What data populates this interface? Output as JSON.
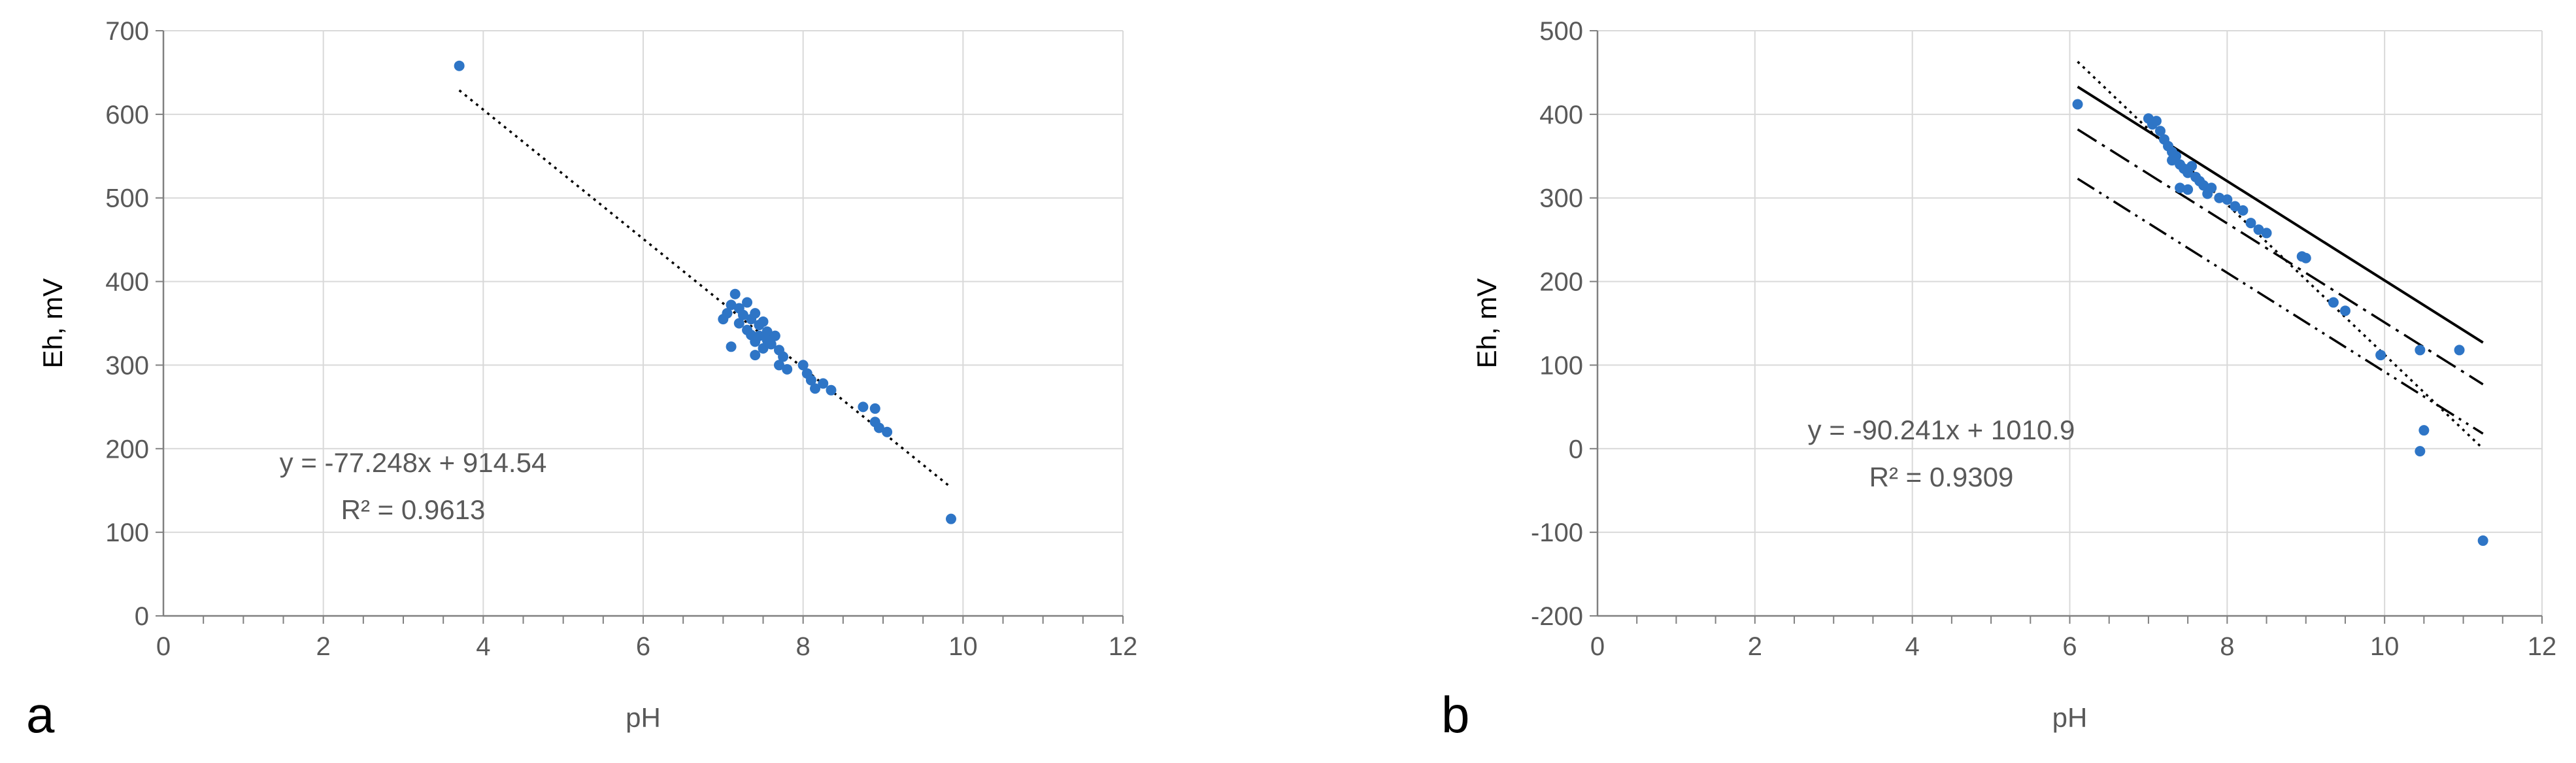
{
  "figure": {
    "panels": [
      "a",
      "b"
    ]
  },
  "colors": {
    "points": "#2E75C6",
    "grid": "#D9D9D9",
    "axis": "#808080",
    "text": "#595959",
    "label": "#000000",
    "line": "#000000"
  },
  "chart_data": [
    {
      "type": "scatter",
      "panel_label": "a",
      "xlabel": "pH",
      "ylabel": "Eh, mV",
      "xlim": [
        0,
        12
      ],
      "ylim": [
        0,
        700
      ],
      "xticks": [
        0,
        2,
        4,
        6,
        8,
        10,
        12
      ],
      "yticks": [
        0,
        100,
        200,
        300,
        400,
        500,
        600,
        700
      ],
      "grid": true,
      "points": [
        [
          3.7,
          658
        ],
        [
          7.0,
          355
        ],
        [
          7.05,
          362
        ],
        [
          7.1,
          372
        ],
        [
          7.15,
          385
        ],
        [
          7.1,
          322
        ],
        [
          7.2,
          368
        ],
        [
          7.2,
          350
        ],
        [
          7.25,
          360
        ],
        [
          7.3,
          342
        ],
        [
          7.3,
          375
        ],
        [
          7.35,
          355
        ],
        [
          7.35,
          336
        ],
        [
          7.4,
          362
        ],
        [
          7.4,
          328
        ],
        [
          7.4,
          312
        ],
        [
          7.45,
          348
        ],
        [
          7.45,
          335
        ],
        [
          7.5,
          352
        ],
        [
          7.5,
          320
        ],
        [
          7.55,
          340
        ],
        [
          7.55,
          330
        ],
        [
          7.6,
          325
        ],
        [
          7.65,
          335
        ],
        [
          7.7,
          318
        ],
        [
          7.7,
          300
        ],
        [
          7.75,
          310
        ],
        [
          7.8,
          295
        ],
        [
          8.0,
          300
        ],
        [
          8.05,
          290
        ],
        [
          8.1,
          282
        ],
        [
          8.15,
          272
        ],
        [
          8.25,
          278
        ],
        [
          8.35,
          270
        ],
        [
          8.75,
          250
        ],
        [
          8.9,
          248
        ],
        [
          8.9,
          232
        ],
        [
          8.95,
          225
        ],
        [
          9.05,
          220
        ],
        [
          9.85,
          116
        ]
      ],
      "trendlines": [
        {
          "style": "dotted",
          "x": [
            3.7,
            9.85
          ]
        }
      ],
      "equation": "y = -77.248x + 914.54",
      "r_squared": "R² = 0.9613"
    },
    {
      "type": "scatter",
      "panel_label": "b",
      "xlabel": "pH",
      "ylabel": "Eh, mV",
      "xlim": [
        0,
        12
      ],
      "ylim": [
        -200,
        500
      ],
      "xticks": [
        0,
        2,
        4,
        6,
        8,
        10,
        12
      ],
      "yticks": [
        -200,
        -100,
        0,
        100,
        200,
        300,
        400,
        500
      ],
      "grid": true,
      "points": [
        [
          6.1,
          412
        ],
        [
          7.0,
          395
        ],
        [
          7.05,
          388
        ],
        [
          7.1,
          392
        ],
        [
          7.15,
          380
        ],
        [
          7.2,
          370
        ],
        [
          7.25,
          362
        ],
        [
          7.3,
          355
        ],
        [
          7.3,
          345
        ],
        [
          7.35,
          350
        ],
        [
          7.4,
          340
        ],
        [
          7.4,
          312
        ],
        [
          7.45,
          335
        ],
        [
          7.5,
          330
        ],
        [
          7.5,
          310
        ],
        [
          7.55,
          338
        ],
        [
          7.6,
          325
        ],
        [
          7.65,
          320
        ],
        [
          7.7,
          315
        ],
        [
          7.75,
          305
        ],
        [
          7.8,
          312
        ],
        [
          7.9,
          300
        ],
        [
          8.0,
          298
        ],
        [
          8.1,
          290
        ],
        [
          8.2,
          285
        ],
        [
          8.3,
          270
        ],
        [
          8.4,
          262
        ],
        [
          8.5,
          258
        ],
        [
          8.95,
          230
        ],
        [
          9.0,
          228
        ],
        [
          9.35,
          175
        ],
        [
          9.5,
          165
        ],
        [
          9.95,
          112
        ],
        [
          10.45,
          118
        ],
        [
          10.5,
          22
        ],
        [
          10.45,
          -3
        ],
        [
          10.95,
          118
        ],
        [
          11.25,
          -110
        ]
      ],
      "trendlines": [
        {
          "style": "dotted",
          "x1": 6.1,
          "y1": 463,
          "x2": 11.25,
          "y2": 0
        },
        {
          "style": "solid",
          "x1": 6.1,
          "y1": 433,
          "x2": 11.25,
          "y2": 127
        },
        {
          "style": "dashdot",
          "x1": 6.1,
          "y1": 382,
          "x2": 11.25,
          "y2": 77
        },
        {
          "style": "dashdotdot",
          "x1": 6.1,
          "y1": 323,
          "x2": 11.25,
          "y2": 18
        }
      ],
      "equation": "y = -90.241x + 1010.9",
      "r_squared": "R² = 0.9309"
    }
  ]
}
